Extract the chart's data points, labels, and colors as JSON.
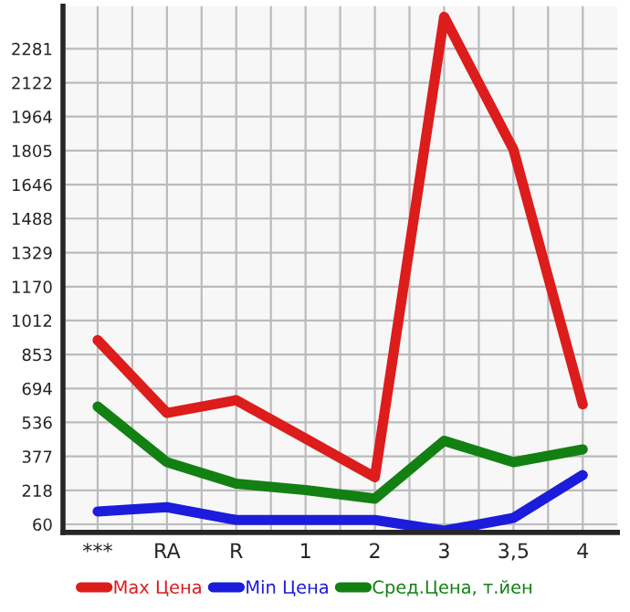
{
  "chart_data": {
    "type": "line",
    "categories": [
      "***",
      "RA",
      "R",
      "1",
      "2",
      "3",
      "3,5",
      "4"
    ],
    "series": [
      {
        "name": "Max Цена",
        "color": "#dd1c1c",
        "values": [
          920,
          580,
          640,
          460,
          280,
          2430,
          1810,
          620
        ]
      },
      {
        "name": "Min Цена",
        "color": "#1c1cdd",
        "values": [
          120,
          140,
          80,
          80,
          80,
          30,
          90,
          290
        ]
      },
      {
        "name": "Сред.Цена, т.йен",
        "color": "#128012",
        "values": [
          610,
          350,
          250,
          220,
          180,
          450,
          350,
          410
        ]
      }
    ],
    "ylim": [
      22,
      2480
    ],
    "yticks": [
      60,
      218,
      377,
      536,
      694,
      853,
      1012,
      1170,
      1329,
      1488,
      1646,
      1805,
      1964,
      2122,
      2281
    ],
    "grid": true,
    "legend": "bottom",
    "marker": "none",
    "line_style": "solid"
  }
}
